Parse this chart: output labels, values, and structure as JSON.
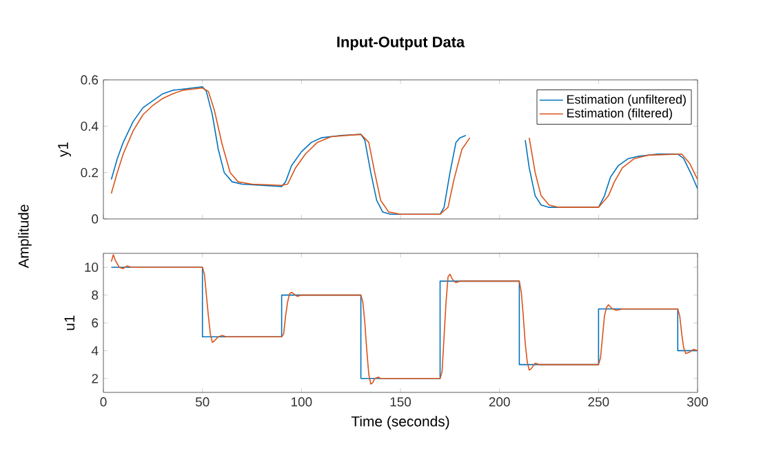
{
  "chart_data": [
    {
      "type": "line",
      "title": "Input-Output Data",
      "ylabel": "y1",
      "xlim": [
        0,
        300
      ],
      "xticks": [
        0,
        50,
        100,
        150,
        200,
        250,
        300
      ],
      "ylim": [
        0,
        0.6
      ],
      "yticks": [
        0,
        0.2,
        0.4,
        0.6
      ],
      "tick_labels": "y",
      "legend": "top right",
      "grid": false,
      "marker": "none",
      "line_style": "solid",
      "series": [
        {
          "name": "Estimation (unfiltered)",
          "color": "#0072bd",
          "x": [
            4,
            7,
            10,
            15,
            20,
            25,
            30,
            35,
            40,
            45,
            50,
            52,
            55,
            58,
            61,
            65,
            70,
            80,
            90,
            92,
            95,
            100,
            105,
            110,
            120,
            130,
            132,
            135,
            138,
            141,
            145,
            170,
            172,
            175,
            178,
            180,
            183,
            198,
            213,
            215,
            218,
            221,
            225,
            250,
            253,
            256,
            260,
            265,
            270,
            280,
            290,
            293,
            297,
            300
          ],
          "values": [
            0.17,
            0.26,
            0.33,
            0.42,
            0.48,
            0.51,
            0.54,
            0.555,
            0.56,
            0.565,
            0.57,
            0.55,
            0.45,
            0.3,
            0.2,
            0.16,
            0.15,
            0.145,
            0.14,
            0.16,
            0.23,
            0.29,
            0.33,
            0.35,
            0.36,
            0.365,
            0.34,
            0.2,
            0.08,
            0.03,
            0.02,
            0.02,
            0.05,
            0.2,
            0.33,
            0.35,
            0.36,
            null,
            0.34,
            0.22,
            0.1,
            0.06,
            0.05,
            0.05,
            0.1,
            0.18,
            0.23,
            0.26,
            0.27,
            0.28,
            0.28,
            0.26,
            0.19,
            0.13
          ]
        },
        {
          "name": "Estimation (filtered)",
          "color": "#d95319",
          "x": [
            4,
            7,
            10,
            15,
            20,
            25,
            30,
            35,
            40,
            50,
            53,
            56,
            60,
            64,
            68,
            75,
            90,
            93,
            97,
            102,
            108,
            115,
            130,
            134,
            137,
            140,
            144,
            150,
            170,
            174,
            177,
            181,
            185,
            200,
            215,
            218,
            221,
            225,
            230,
            250,
            255,
            258,
            262,
            268,
            275,
            292,
            296,
            300
          ],
          "values": [
            0.11,
            0.2,
            0.28,
            0.38,
            0.45,
            0.49,
            0.52,
            0.54,
            0.555,
            0.565,
            0.55,
            0.47,
            0.32,
            0.2,
            0.16,
            0.15,
            0.145,
            0.15,
            0.22,
            0.28,
            0.33,
            0.355,
            0.365,
            0.33,
            0.2,
            0.08,
            0.03,
            0.02,
            0.02,
            0.05,
            0.17,
            0.3,
            0.35,
            null,
            0.35,
            0.2,
            0.1,
            0.06,
            0.05,
            0.05,
            0.1,
            0.16,
            0.22,
            0.26,
            0.275,
            0.28,
            0.24,
            0.17
          ]
        }
      ]
    },
    {
      "type": "line",
      "ylabel": "u1",
      "xlabel": "Time (seconds)",
      "annotations": [
        "Amplitude"
      ],
      "xlim": [
        0,
        300
      ],
      "xticks": [
        0,
        50,
        100,
        150,
        200,
        250,
        300
      ],
      "ylim": [
        1,
        11
      ],
      "yticks": [
        2,
        4,
        6,
        8,
        10
      ],
      "grid": false,
      "marker": "none",
      "line_style": "solid",
      "series": [
        {
          "type": "step",
          "color": "#0072bd",
          "x": [
            4,
            50,
            90,
            130,
            170,
            210,
            250,
            290,
            300
          ],
          "values": [
            10,
            5,
            8,
            2,
            9,
            3,
            7,
            4,
            4
          ]
        },
        {
          "color": "#d95319",
          "x": [
            4,
            5,
            6,
            8,
            10,
            12,
            14,
            50,
            51,
            52,
            53,
            54,
            55,
            56,
            58,
            60,
            62,
            90,
            91,
            92,
            93,
            94,
            95,
            97,
            98,
            100,
            130,
            131,
            132,
            133,
            134,
            135,
            136,
            137,
            139,
            140,
            170,
            171,
            172,
            173,
            174,
            175,
            176,
            177,
            178,
            180,
            210,
            211,
            212,
            213,
            214,
            215,
            216,
            218,
            220,
            250,
            251,
            252,
            253,
            254,
            255,
            257,
            259,
            262,
            290,
            291,
            292,
            293,
            294,
            296,
            298,
            300
          ],
          "values": [
            10.4,
            10.9,
            10.5,
            10.0,
            9.9,
            10.1,
            10,
            10,
            9.5,
            8,
            6.5,
            5.2,
            4.6,
            4.7,
            5.0,
            5.1,
            5,
            5,
            5.2,
            6.5,
            7.5,
            8.1,
            8.2,
            8.0,
            7.9,
            8,
            8,
            7.5,
            6,
            4,
            2.3,
            1.6,
            1.7,
            2,
            2.1,
            2,
            2,
            2.5,
            5,
            7.5,
            9.3,
            9.5,
            9.2,
            9.0,
            8.9,
            9,
            9,
            8.2,
            6.5,
            4.5,
            3.2,
            2.6,
            2.7,
            3.1,
            3,
            3,
            3.5,
            5,
            6.5,
            7.1,
            7.3,
            7.0,
            6.9,
            7,
            7,
            6.5,
            5.2,
            4.2,
            3.8,
            3.9,
            4.1,
            4
          ]
        }
      ]
    }
  ]
}
